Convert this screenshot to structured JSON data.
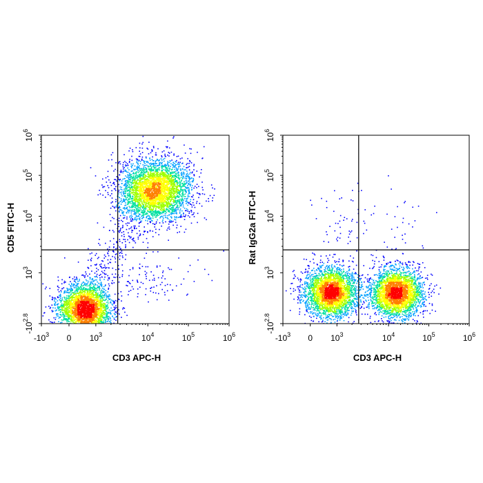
{
  "chart_data": [
    {
      "type": "scatter",
      "style": "density-colored flow cytometry dot plot",
      "xlabel": "CD3 APC-H",
      "ylabel": "CD5 FITC-H",
      "x_scale": "biexponential",
      "y_scale": "biexponential",
      "x_ticks": [
        {
          "base": "-10",
          "exp": "3",
          "value": -1000
        },
        {
          "base": "0",
          "exp": "",
          "value": 0
        },
        {
          "base": "10",
          "exp": "3",
          "value": 1000
        },
        {
          "base": "10",
          "exp": "4",
          "value": 10000
        },
        {
          "base": "10",
          "exp": "5",
          "value": 100000
        },
        {
          "base": "10",
          "exp": "6",
          "value": 1000000
        }
      ],
      "y_ticks": [
        {
          "base": "-10",
          "exp": "2.8",
          "value": -631
        },
        {
          "base": "10",
          "exp": "3",
          "value": 1000
        },
        {
          "base": "10",
          "exp": "4",
          "value": 10000
        },
        {
          "base": "10",
          "exp": "5",
          "value": 100000
        },
        {
          "base": "10",
          "exp": "6",
          "value": 1000000
        }
      ],
      "quadrant_gate": {
        "x": 2700,
        "y": 2600
      },
      "populations": [
        {
          "x_center": 300,
          "y_center": 0,
          "events": 3200,
          "density": "high"
        },
        {
          "x_center": 15000,
          "y_center": 45000,
          "events": 3600,
          "density": "high"
        },
        {
          "x_center": 1500,
          "y_center": 5000,
          "events": 350,
          "density": "low"
        },
        {
          "x_center": 10000,
          "y_center": 600,
          "events": 120,
          "density": "low"
        }
      ],
      "colormap": [
        "#0000ff",
        "#00a0ff",
        "#00e0a0",
        "#a0ff00",
        "#ffff00",
        "#ff8000",
        "#ff0000"
      ]
    },
    {
      "type": "scatter",
      "style": "density-colored flow cytometry dot plot",
      "xlabel": "CD3 APC-H",
      "ylabel": "Rat IgG2a FITC-H",
      "x_scale": "biexponential",
      "y_scale": "biexponential",
      "x_ticks": [
        {
          "base": "-10",
          "exp": "3",
          "value": -1000
        },
        {
          "base": "0",
          "exp": "",
          "value": 0
        },
        {
          "base": "10",
          "exp": "3",
          "value": 1000
        },
        {
          "base": "10",
          "exp": "4",
          "value": 10000
        },
        {
          "base": "10",
          "exp": "5",
          "value": 100000
        },
        {
          "base": "10",
          "exp": "6",
          "value": 1000000
        }
      ],
      "y_ticks": [
        {
          "base": "-10",
          "exp": "2.8",
          "value": -631
        },
        {
          "base": "10",
          "exp": "3",
          "value": 1000
        },
        {
          "base": "10",
          "exp": "4",
          "value": 10000
        },
        {
          "base": "10",
          "exp": "5",
          "value": 100000
        },
        {
          "base": "10",
          "exp": "6",
          "value": 1000000
        }
      ],
      "quadrant_gate": {
        "x": 2700,
        "y": 2600
      },
      "populations": [
        {
          "x_center": 500,
          "y_center": 200,
          "events": 3000,
          "density": "high"
        },
        {
          "x_center": 15000,
          "y_center": 200,
          "events": 3000,
          "density": "high"
        },
        {
          "x_center": 1200,
          "y_center": 8000,
          "events": 60,
          "density": "low"
        },
        {
          "x_center": 20000,
          "y_center": 8000,
          "events": 30,
          "density": "low"
        }
      ],
      "colormap": [
        "#0000ff",
        "#00a0ff",
        "#00e0a0",
        "#a0ff00",
        "#ffff00",
        "#ff8000",
        "#ff0000"
      ]
    }
  ]
}
